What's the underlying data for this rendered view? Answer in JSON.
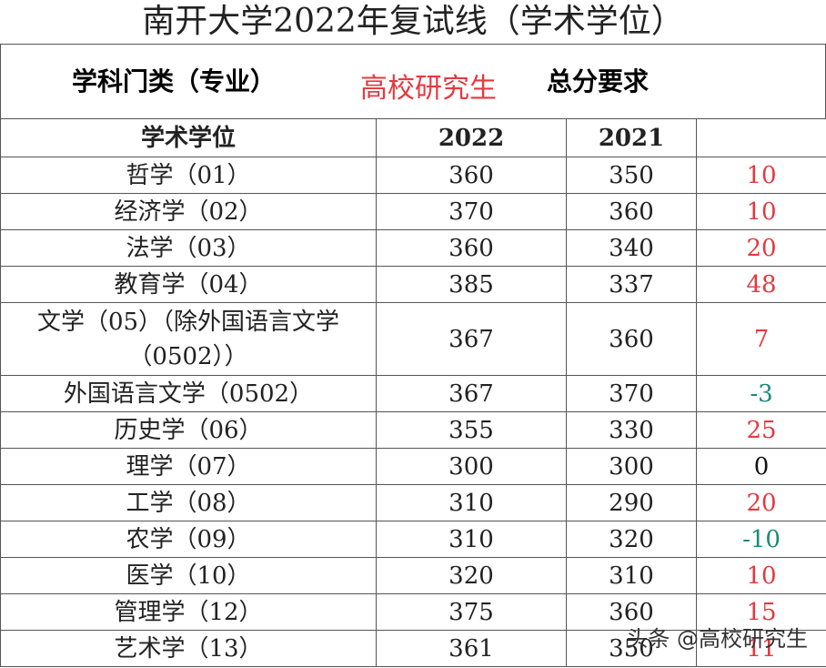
{
  "title": "南开大学2022年复试线（学术学位）",
  "header": {
    "category": "学科门类（专业）",
    "watermark": "高校研究生",
    "requirement": "总分要求"
  },
  "columns": [
    "学术学位",
    "2022",
    "2021"
  ],
  "rows": [
    [
      "哲学（01）",
      360,
      350,
      10
    ],
    [
      "经济学（02）",
      370,
      360,
      10
    ],
    [
      "法学（03）",
      360,
      340,
      20
    ],
    [
      "教育学（04）",
      385,
      337,
      48
    ],
    [
      "文学（05）（除外国语言文学（0502））",
      367,
      360,
      7
    ],
    [
      "外国语言文学（0502）",
      367,
      370,
      -3
    ],
    [
      "历史学（06）",
      355,
      330,
      25
    ],
    [
      "理学（07）",
      300,
      300,
      0
    ],
    [
      "工学（08）",
      310,
      290,
      20
    ],
    [
      "农学（09）",
      310,
      320,
      -10
    ],
    [
      "医学（10）",
      320,
      310,
      10
    ],
    [
      "管理学（12）",
      375,
      360,
      15
    ],
    [
      "艺术学（13）",
      361,
      350,
      11
    ]
  ],
  "footer": "头条 @高校研究生"
}
